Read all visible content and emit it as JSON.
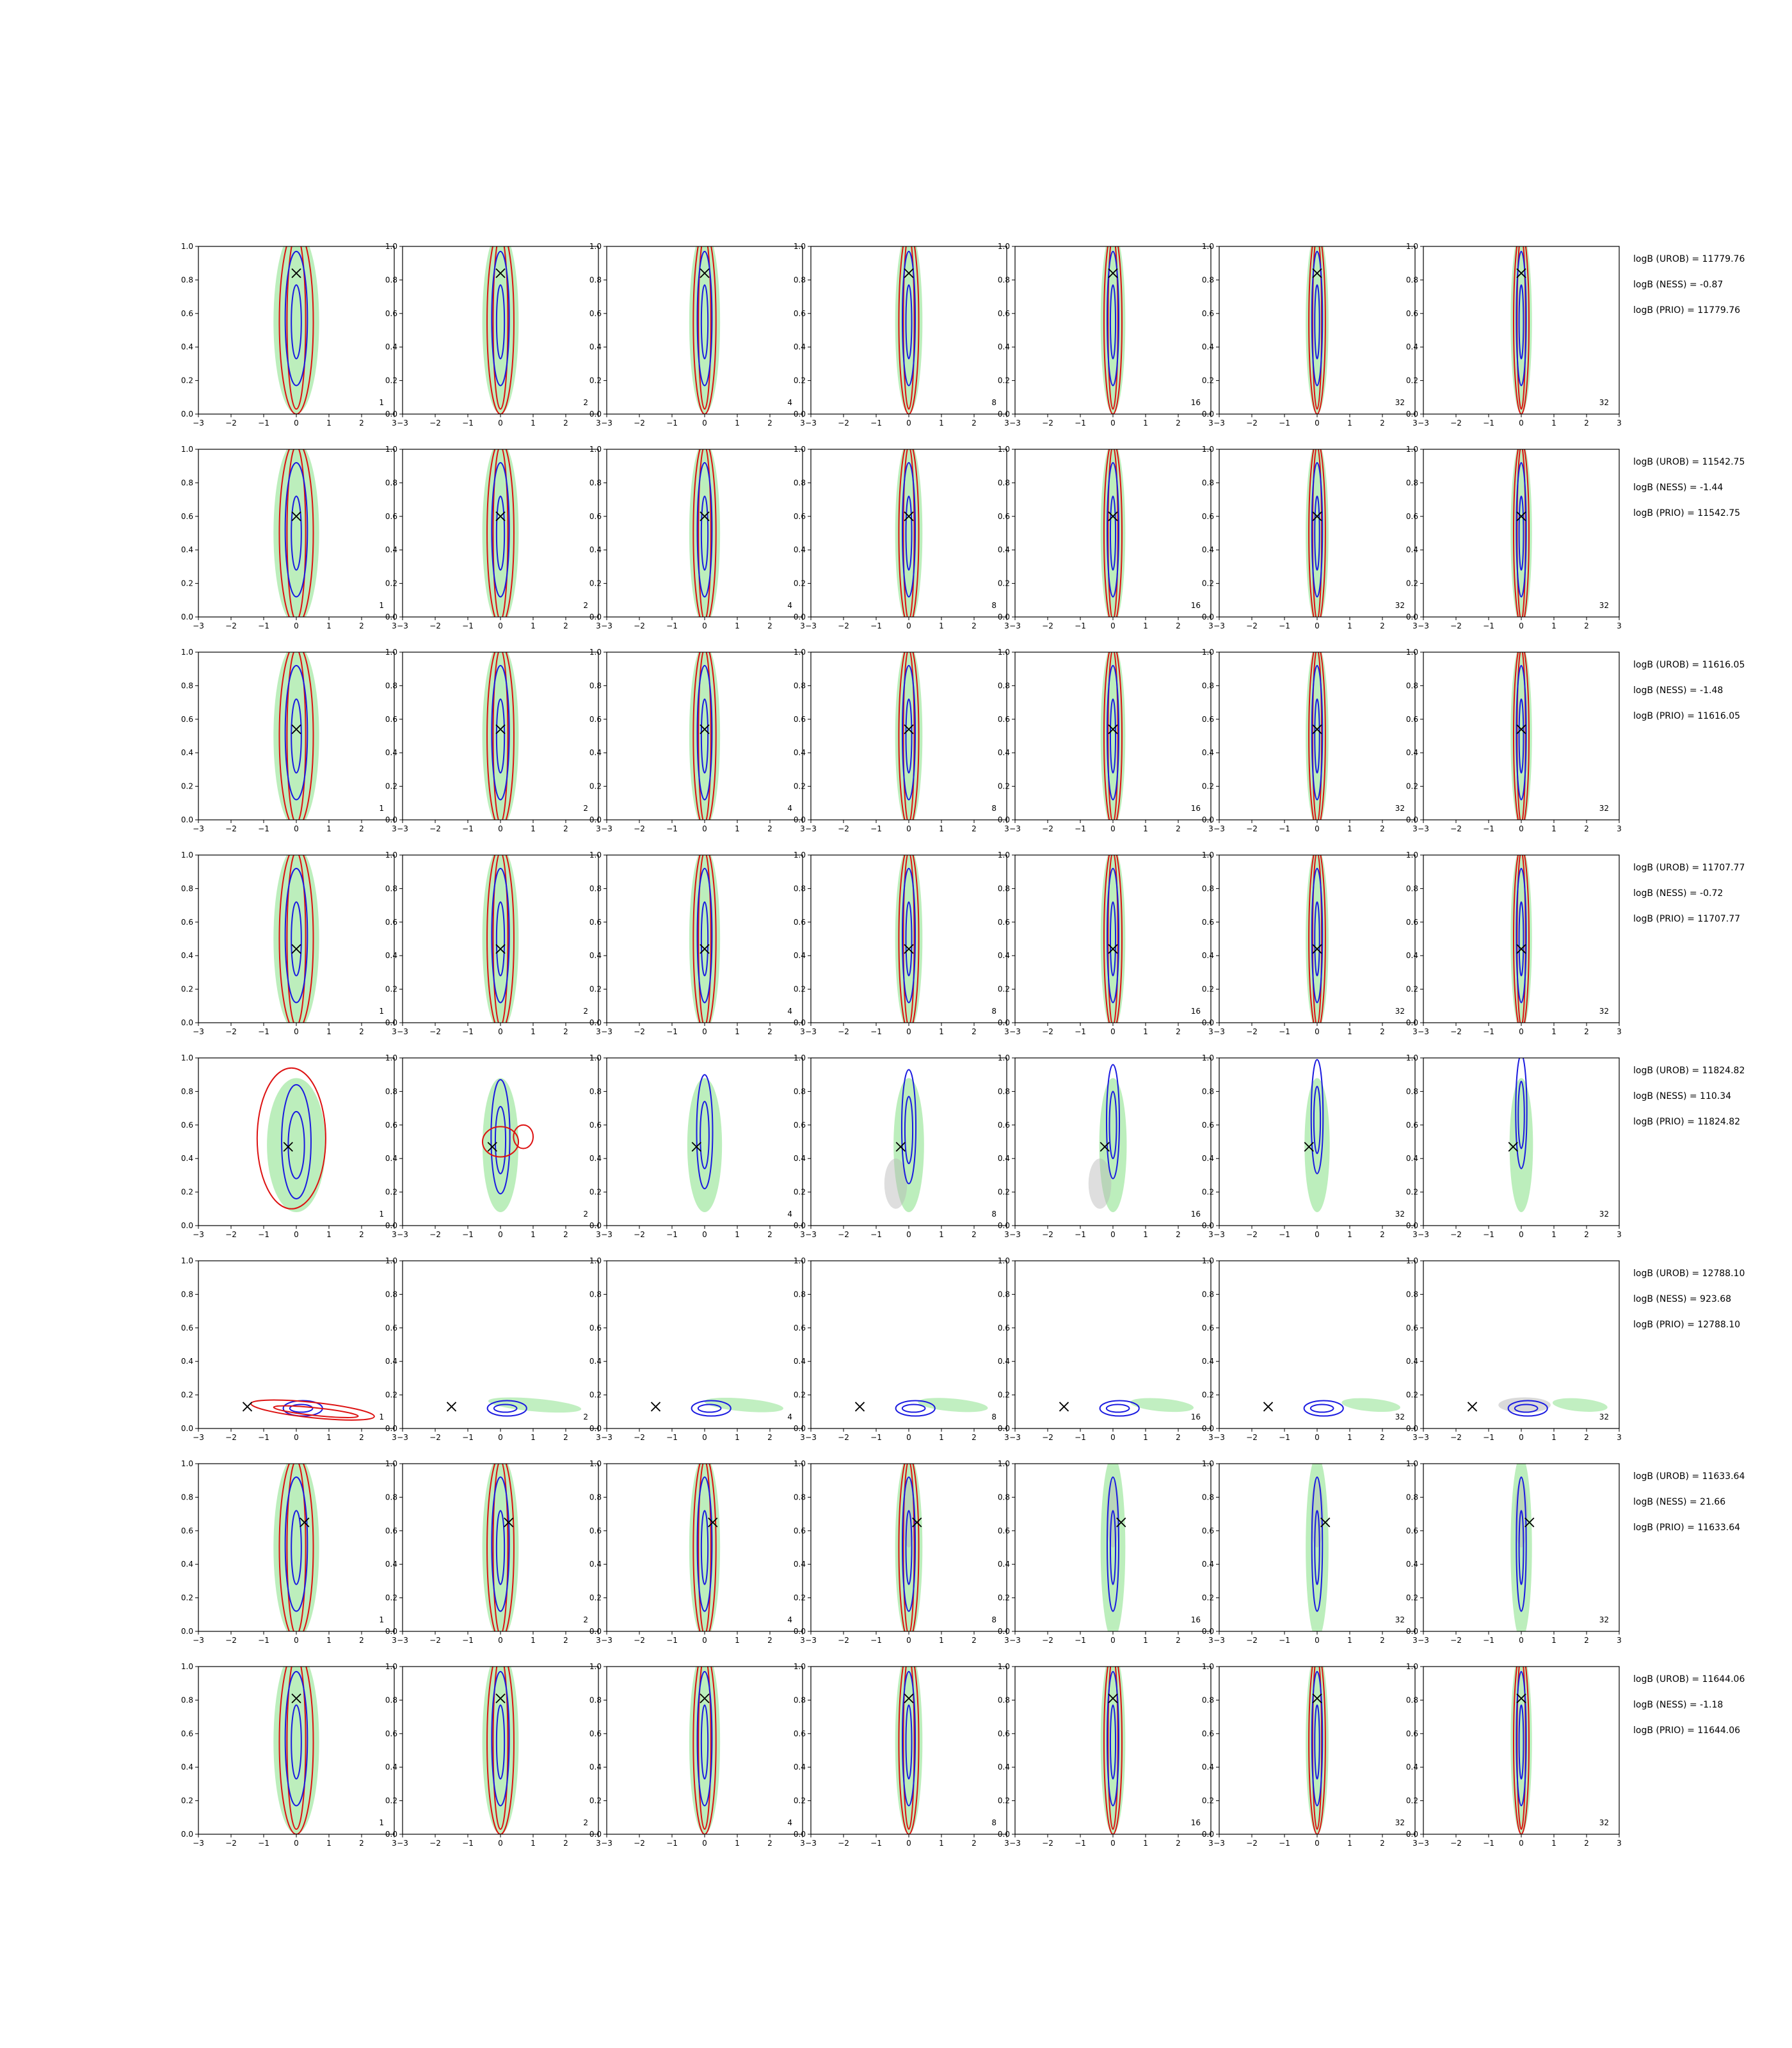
{
  "chart_data": {
    "type": "contour",
    "layout": {
      "rows": 8,
      "cols": 7
    },
    "xlim": [
      -3,
      3
    ],
    "ylim": [
      0.0,
      1.0
    ],
    "xticks": [
      -3,
      -2,
      -1,
      0,
      1,
      2,
      3
    ],
    "yticks": [
      0.0,
      0.2,
      0.4,
      0.6,
      0.8,
      1.0
    ],
    "panel_labels": [
      "1",
      "2",
      "4",
      "8",
      "16",
      "32",
      "32"
    ],
    "colors": {
      "red": "#dd1111",
      "blue": "#1a1ae0",
      "green": "#a6e8a6",
      "gray": "#b5b5b5",
      "marker": "#000000"
    },
    "rows": [
      {
        "marker": [
          0.0,
          0.84
        ],
        "mode": "vertical",
        "logB": {
          "urob": "logB (UROB) = 11779.76",
          "ness": "logB (NESS) = -0.87",
          "prio": "logB (PRIO) = 11779.76"
        }
      },
      {
        "marker": [
          0.0,
          0.6
        ],
        "mode": "vertical",
        "logB": {
          "urob": "logB (UROB) = 11542.75",
          "ness": "logB (NESS) = -1.44",
          "prio": "logB (PRIO) = 11542.75"
        }
      },
      {
        "marker": [
          0.0,
          0.54
        ],
        "mode": "vertical",
        "logB": {
          "urob": "logB (UROB) = 11616.05",
          "ness": "logB (NESS) = -1.48",
          "prio": "logB (PRIO) = 11616.05"
        }
      },
      {
        "marker": [
          0.0,
          0.44
        ],
        "mode": "vertical",
        "logB": {
          "urob": "logB (UROB) = 11707.77",
          "ness": "logB (NESS) = -0.72",
          "prio": "logB (PRIO) = 11707.77"
        }
      },
      {
        "marker": [
          -0.25,
          0.47
        ],
        "mode": "diverge",
        "logB": {
          "urob": "logB (UROB) = 11824.82",
          "ness": "logB (NESS) = 110.34",
          "prio": "logB (PRIO) = 11824.82"
        }
      },
      {
        "marker": [
          -1.5,
          0.13
        ],
        "mode": "horizontal",
        "logB": {
          "urob": "logB (UROB) = 12788.10",
          "ness": "logB (NESS) = 923.68",
          "prio": "logB (PRIO) = 12788.10"
        }
      },
      {
        "marker": [
          0.25,
          0.65
        ],
        "mode": "offset",
        "logB": {
          "urob": "logB (UROB) = 11633.64",
          "ness": "logB (NESS) = 21.66",
          "prio": "logB (PRIO) = 11633.64"
        }
      },
      {
        "marker": [
          0.0,
          0.81
        ],
        "mode": "vertical",
        "logB": {
          "urob": "logB (UROB) = 11644.06",
          "ness": "logB (NESS) = -1.18",
          "prio": "logB (PRIO) = 11644.06"
        }
      }
    ]
  }
}
